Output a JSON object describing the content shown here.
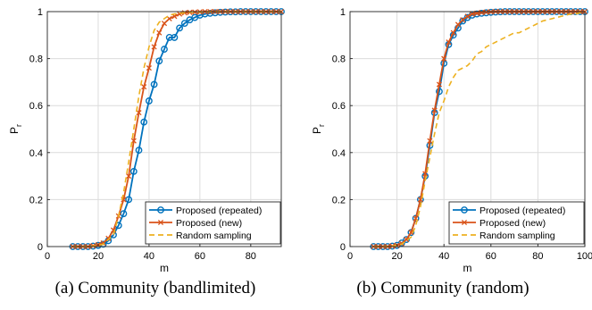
{
  "captions": {
    "a": "(a) Community (bandlimited)",
    "b": "(b) Community (random)"
  },
  "colors": {
    "repeated": "#0072BD",
    "new": "#D95319",
    "random": "#EDB120",
    "grid": "#dcdcdc",
    "axis": "#262626"
  },
  "chart_data": [
    {
      "type": "line",
      "panel": "a",
      "title": "",
      "xlabel": "m",
      "ylabel": "P",
      "ylabel_subscript": "r",
      "xlim": [
        0,
        92
      ],
      "ylim": [
        0,
        1
      ],
      "xticks": [
        "0",
        "20",
        "40",
        "60",
        "80"
      ],
      "xtick_values": [
        0,
        20,
        40,
        60,
        80
      ],
      "yticks": [
        "0",
        "0.2",
        "0.4",
        "0.6",
        "0.8",
        "1"
      ],
      "ytick_values": [
        0,
        0.2,
        0.4,
        0.6,
        0.8,
        1
      ],
      "grid": true,
      "legend_position": "bottom-right",
      "series": [
        {
          "name": "Proposed (repeated)",
          "style": "solid-circle",
          "x": [
            10,
            12,
            14,
            16,
            18,
            20,
            22,
            24,
            26,
            28,
            30,
            32,
            34,
            36,
            38,
            40,
            42,
            44,
            46,
            48,
            50,
            52,
            54,
            56,
            58,
            60,
            62,
            64,
            66,
            68,
            70,
            72,
            74,
            76,
            78,
            80,
            82,
            84,
            86,
            88,
            90,
            92
          ],
          "y": [
            0,
            0,
            0,
            0,
            0.002,
            0.005,
            0.01,
            0.025,
            0.05,
            0.09,
            0.14,
            0.2,
            0.32,
            0.41,
            0.53,
            0.62,
            0.69,
            0.79,
            0.84,
            0.89,
            0.89,
            0.93,
            0.95,
            0.965,
            0.975,
            0.985,
            0.99,
            0.993,
            0.995,
            0.997,
            0.998,
            0.999,
            0.999,
            1,
            1,
            1,
            1,
            1,
            1,
            1,
            1,
            1
          ]
        },
        {
          "name": "Proposed (new)",
          "style": "solid-x",
          "x": [
            10,
            12,
            14,
            16,
            18,
            20,
            22,
            24,
            26,
            28,
            30,
            32,
            34,
            36,
            38,
            40,
            42,
            44,
            46,
            48,
            50,
            52,
            54,
            56,
            58,
            60,
            62,
            64,
            66,
            68,
            70,
            72,
            74,
            76,
            78,
            80,
            82,
            84,
            86,
            88,
            90,
            92
          ],
          "y": [
            0,
            0,
            0,
            0,
            0.003,
            0.008,
            0.015,
            0.035,
            0.07,
            0.13,
            0.2,
            0.3,
            0.45,
            0.57,
            0.68,
            0.76,
            0.85,
            0.91,
            0.95,
            0.97,
            0.98,
            0.99,
            0.995,
            0.997,
            0.998,
            0.999,
            1,
            1,
            1,
            1,
            1,
            1,
            1,
            1,
            1,
            1,
            1,
            1,
            1,
            1,
            1,
            1
          ]
        },
        {
          "name": "Random sampling",
          "style": "dashed",
          "x": [
            10,
            14,
            18,
            22,
            26,
            28,
            30,
            32,
            34,
            36,
            38,
            40,
            42,
            44,
            46,
            48,
            50,
            54,
            58,
            62,
            66,
            70,
            74,
            78,
            82,
            86,
            90,
            92
          ],
          "y": [
            0,
            0,
            0.002,
            0.01,
            0.05,
            0.13,
            0.23,
            0.36,
            0.5,
            0.64,
            0.76,
            0.85,
            0.92,
            0.955,
            0.97,
            0.985,
            0.99,
            0.995,
            0.998,
            0.999,
            1,
            1,
            1,
            1,
            1,
            1,
            1,
            1
          ]
        }
      ]
    },
    {
      "type": "line",
      "panel": "b",
      "title": "",
      "xlabel": "m",
      "ylabel": "P",
      "ylabel_subscript": "r",
      "xlim": [
        0,
        100
      ],
      "ylim": [
        0,
        1
      ],
      "xticks": [
        "0",
        "20",
        "40",
        "60",
        "80",
        "100"
      ],
      "xtick_values": [
        0,
        20,
        40,
        60,
        80,
        100
      ],
      "yticks": [
        "0",
        "0.2",
        "0.4",
        "0.6",
        "0.8",
        "1"
      ],
      "ytick_values": [
        0,
        0.2,
        0.4,
        0.6,
        0.8,
        1
      ],
      "grid": true,
      "legend_position": "bottom-right",
      "series": [
        {
          "name": "Proposed (repeated)",
          "style": "solid-circle",
          "x": [
            10,
            12,
            14,
            16,
            18,
            20,
            22,
            24,
            26,
            28,
            30,
            32,
            34,
            36,
            38,
            40,
            42,
            44,
            46,
            48,
            50,
            52,
            54,
            56,
            58,
            60,
            62,
            64,
            66,
            68,
            70,
            72,
            74,
            76,
            78,
            80,
            82,
            84,
            86,
            88,
            90,
            92,
            94,
            96,
            98,
            100
          ],
          "y": [
            0,
            0,
            0,
            0,
            0.002,
            0.005,
            0.015,
            0.03,
            0.06,
            0.12,
            0.2,
            0.3,
            0.43,
            0.57,
            0.66,
            0.78,
            0.86,
            0.9,
            0.93,
            0.96,
            0.975,
            0.985,
            0.99,
            0.993,
            0.995,
            0.997,
            0.998,
            0.999,
            1,
            1,
            1,
            1,
            1,
            1,
            1,
            1,
            1,
            1,
            1,
            1,
            1,
            1,
            1,
            1,
            1,
            1
          ]
        },
        {
          "name": "Proposed (new)",
          "style": "solid-x",
          "x": [
            10,
            12,
            14,
            16,
            18,
            20,
            22,
            24,
            26,
            28,
            30,
            32,
            34,
            36,
            38,
            40,
            42,
            44,
            46,
            48,
            50,
            52,
            54,
            56,
            58,
            60,
            62,
            64,
            66,
            68,
            70,
            72,
            74,
            76,
            78,
            80,
            82,
            84,
            86,
            88,
            90,
            92,
            94,
            96,
            98,
            100
          ],
          "y": [
            0,
            0,
            0,
            0,
            0.002,
            0.005,
            0.013,
            0.03,
            0.06,
            0.12,
            0.2,
            0.31,
            0.45,
            0.58,
            0.69,
            0.8,
            0.87,
            0.91,
            0.945,
            0.965,
            0.98,
            0.99,
            0.993,
            0.996,
            0.998,
            0.999,
            1,
            1,
            1,
            1,
            1,
            1,
            1,
            1,
            1,
            1,
            1,
            1,
            1,
            1,
            1,
            1,
            1,
            1,
            1,
            1
          ]
        },
        {
          "name": "Random sampling",
          "style": "dashed",
          "x": [
            10,
            14,
            18,
            22,
            26,
            28,
            30,
            32,
            34,
            36,
            38,
            40,
            42,
            44,
            46,
            48,
            50,
            52,
            54,
            56,
            58,
            60,
            62,
            64,
            66,
            68,
            70,
            72,
            74,
            76,
            78,
            80,
            82,
            84,
            86,
            88,
            90,
            92,
            94,
            96,
            98,
            100
          ],
          "y": [
            0,
            0,
            0.002,
            0.01,
            0.04,
            0.09,
            0.17,
            0.28,
            0.38,
            0.48,
            0.57,
            0.62,
            0.68,
            0.72,
            0.75,
            0.76,
            0.77,
            0.79,
            0.82,
            0.83,
            0.85,
            0.86,
            0.87,
            0.88,
            0.89,
            0.9,
            0.91,
            0.91,
            0.92,
            0.93,
            0.94,
            0.95,
            0.96,
            0.965,
            0.97,
            0.975,
            0.98,
            0.985,
            0.99,
            0.99,
            0.995,
            1
          ]
        }
      ]
    }
  ]
}
